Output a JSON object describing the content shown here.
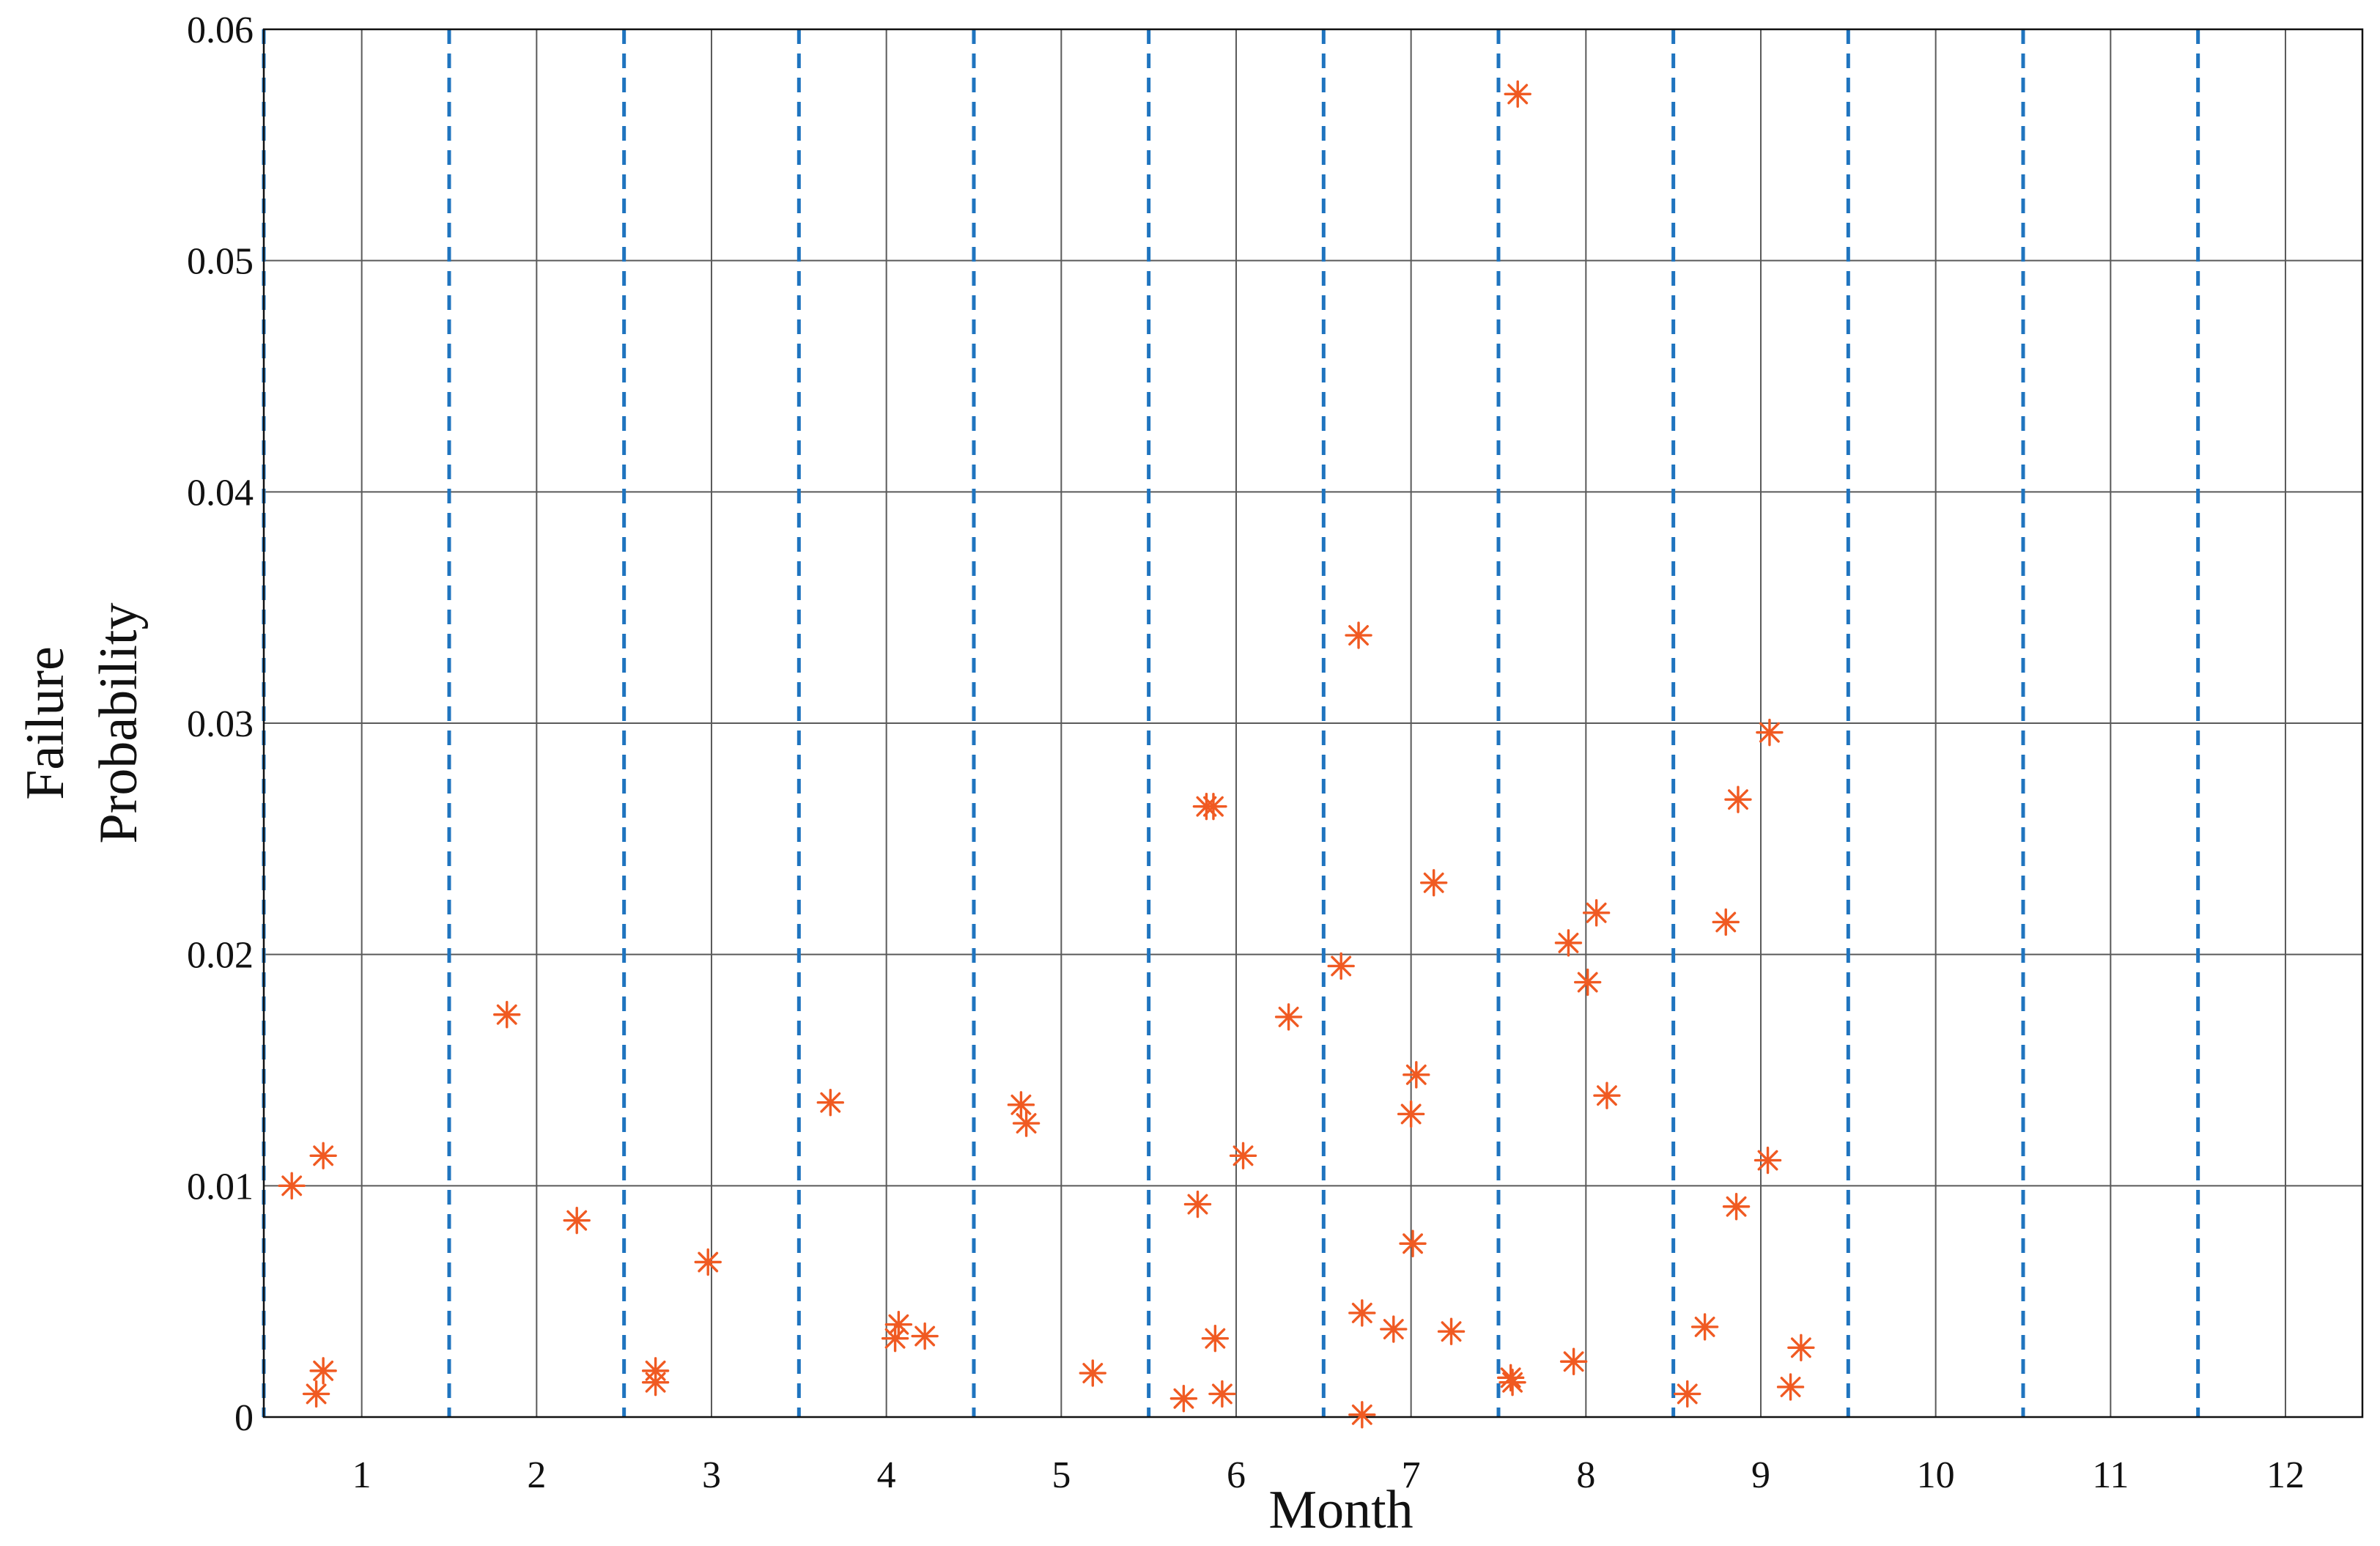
{
  "chart_data": {
    "type": "scatter",
    "title": "",
    "xlabel": "Month",
    "ylabel_lines": [
      "Failure",
      "Probability"
    ],
    "xlim": [
      0.44,
      12.44
    ],
    "ylim": [
      0,
      0.06
    ],
    "xticks": [
      1,
      2,
      3,
      4,
      5,
      6,
      7,
      8,
      9,
      10,
      11,
      12
    ],
    "xtick_labels": [
      "1",
      "2",
      "3",
      "4",
      "5",
      "6",
      "7",
      "8",
      "9",
      "10",
      "11",
      "12"
    ],
    "yticks": [
      0,
      0.01,
      0.02,
      0.03,
      0.04,
      0.05,
      0.06
    ],
    "ytick_labels": [
      "0",
      "0.01",
      "0.02",
      "0.03",
      "0.04",
      "0.05",
      "0.06"
    ],
    "grid": true,
    "month_separators": [
      1.5,
      2.5,
      3.5,
      4.5,
      5.5,
      6.5,
      7.5,
      8.5,
      9.5,
      10.5,
      11.5
    ],
    "colors": {
      "marker": "#f05a22",
      "separator": "#1f74bf",
      "grid": "#5a5a5a"
    },
    "marker": "asterisk",
    "series": [
      {
        "points": [
          [
            0.6,
            0.01
          ],
          [
            0.78,
            0.0113
          ],
          [
            0.78,
            0.002
          ],
          [
            0.74,
            0.001
          ],
          [
            1.83,
            0.0174
          ],
          [
            2.23,
            0.0085
          ],
          [
            2.68,
            0.002
          ],
          [
            2.68,
            0.0015
          ],
          [
            2.98,
            0.0067
          ],
          [
            3.68,
            0.0136
          ],
          [
            4.05,
            0.0034
          ],
          [
            4.07,
            0.004
          ],
          [
            4.22,
            0.0035
          ],
          [
            4.77,
            0.0135
          ],
          [
            4.8,
            0.0127
          ],
          [
            5.18,
            0.0019
          ],
          [
            5.7,
            0.0008
          ],
          [
            5.78,
            0.0092
          ],
          [
            5.83,
            0.0264
          ],
          [
            5.87,
            0.0264
          ],
          [
            5.88,
            0.0034
          ],
          [
            5.92,
            0.001
          ],
          [
            6.04,
            0.0113
          ],
          [
            6.3,
            0.0173
          ],
          [
            6.6,
            0.0195
          ],
          [
            6.7,
            0.0338
          ],
          [
            6.72,
            0.0045
          ],
          [
            6.72,
            0.0001
          ],
          [
            6.9,
            0.0038
          ],
          [
            7.0,
            0.0131
          ],
          [
            7.01,
            0.0075
          ],
          [
            7.03,
            0.0148
          ],
          [
            7.13,
            0.0231
          ],
          [
            7.23,
            0.0037
          ],
          [
            7.57,
            0.0017
          ],
          [
            7.58,
            0.0015
          ],
          [
            7.61,
            0.0572
          ],
          [
            7.9,
            0.0205
          ],
          [
            7.93,
            0.0024
          ],
          [
            8.01,
            0.0188
          ],
          [
            8.06,
            0.0218
          ],
          [
            8.12,
            0.0139
          ],
          [
            8.58,
            0.001
          ],
          [
            8.68,
            0.0039
          ],
          [
            8.8,
            0.0214
          ],
          [
            8.86,
            0.0091
          ],
          [
            8.87,
            0.0267
          ],
          [
            9.04,
            0.0111
          ],
          [
            9.05,
            0.0296
          ],
          [
            9.17,
            0.0013
          ],
          [
            9.23,
            0.003
          ]
        ]
      }
    ]
  }
}
